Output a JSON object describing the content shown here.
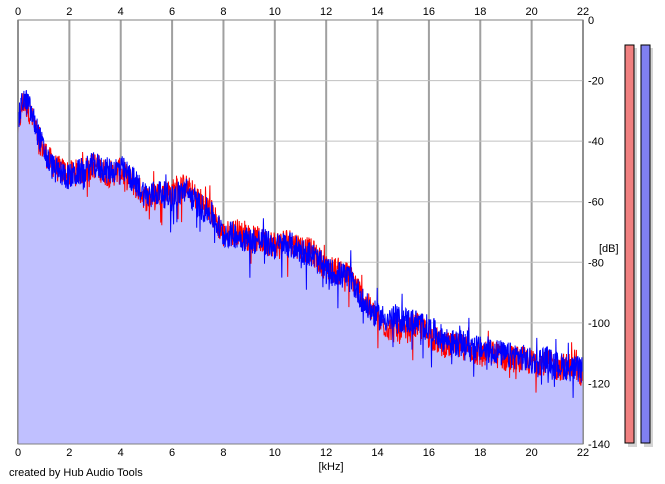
{
  "credit": "created by Hub Audio Tools",
  "chart_data": {
    "type": "line",
    "xlabel": "[kHz]",
    "ylabel": "[dB]",
    "xlim": [
      0,
      22
    ],
    "ylim": [
      -140,
      0
    ],
    "x_ticks": [
      0,
      2,
      4,
      6,
      8,
      10,
      12,
      14,
      16,
      18,
      20,
      22
    ],
    "y_ticks": [
      0,
      -20,
      -40,
      -60,
      -80,
      -100,
      -120,
      -140
    ],
    "x_tick_labels": [
      "0",
      "2",
      "4",
      "6",
      "8",
      "10",
      "12",
      "14",
      "16",
      "18",
      "20",
      "22"
    ],
    "y_tick_labels": [
      "0",
      "-20",
      "-40",
      "-60",
      "-80",
      "-100",
      "-120",
      "-140"
    ],
    "grid": true,
    "colors": {
      "left_channel": "#ff0000",
      "right_channel": "#0000ff",
      "fill": "#c0c0ff",
      "grid": "#c0c0c0",
      "major_grid": "#a0a0a0",
      "meter_left": "#f08080",
      "meter_right": "#8080f0"
    },
    "series": [
      {
        "color": "#ff0000",
        "x": [
          0,
          0.2,
          0.4,
          0.6,
          0.8,
          1,
          1.2,
          1.5,
          2,
          2.5,
          3,
          3.5,
          4,
          4.5,
          5,
          5.5,
          6,
          6.5,
          7,
          7.5,
          8,
          8.5,
          9,
          9.5,
          10,
          10.5,
          11,
          11.5,
          12,
          12.5,
          13,
          13.5,
          14,
          14.5,
          15,
          15.5,
          16,
          16.5,
          17,
          17.5,
          18,
          18.5,
          19,
          19.5,
          20,
          20.5,
          21,
          21.5,
          22
        ],
        "y": [
          -35,
          -26,
          -28,
          -33,
          -38,
          -42,
          -45,
          -48,
          -50,
          -49,
          -47,
          -50,
          -49,
          -53,
          -58,
          -56,
          -56,
          -54,
          -58,
          -62,
          -70,
          -69,
          -71,
          -72,
          -73,
          -72,
          -74,
          -76,
          -81,
          -82,
          -84,
          -92,
          -98,
          -101,
          -102,
          -100,
          -103,
          -106,
          -107,
          -107,
          -110,
          -109,
          -111,
          -111,
          -112,
          -112,
          -114,
          -113,
          -116
        ]
      },
      {
        "color": "#0000ff",
        "x": [
          0,
          0.2,
          0.4,
          0.6,
          0.8,
          1,
          1.2,
          1.5,
          2,
          2.5,
          3,
          3.5,
          4,
          4.5,
          5,
          5.5,
          6,
          6.5,
          7,
          7.5,
          8,
          8.5,
          9,
          9.5,
          10,
          10.5,
          11,
          11.5,
          12,
          12.5,
          13,
          13.5,
          14,
          14.5,
          15,
          15.5,
          16,
          16.5,
          17,
          17.5,
          18,
          18.5,
          19,
          19.5,
          20,
          20.5,
          21,
          21.5,
          22
        ],
        "y": [
          -33,
          -25,
          -27,
          -32,
          -37,
          -42,
          -46,
          -49,
          -51,
          -49,
          -47,
          -49,
          -48,
          -52,
          -57,
          -56,
          -58,
          -55,
          -60,
          -63,
          -70,
          -70,
          -72,
          -72,
          -74,
          -73,
          -75,
          -77,
          -82,
          -83,
          -85,
          -93,
          -97,
          -98,
          -98,
          -99,
          -101,
          -104,
          -106,
          -106,
          -108,
          -108,
          -110,
          -110,
          -112,
          -111,
          -113,
          -114,
          -115
        ]
      }
    ]
  },
  "meters": [
    {
      "color": "#f08080"
    },
    {
      "color": "#8080f0"
    }
  ]
}
